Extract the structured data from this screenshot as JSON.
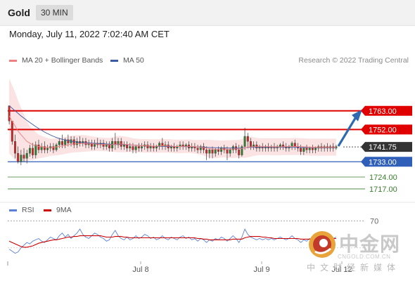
{
  "header": {
    "symbol": "Gold",
    "timeframe": "30 MIN",
    "datetime": "Monday, July 11, 2022 7:02:40 AM CET",
    "research": "Research © 2022 Trading Central"
  },
  "legend": {
    "ma20": "MA 20 + Bollinger Bands",
    "ma50": "MA 50",
    "ma20_color": "#f08080",
    "ma50_color": "#3b5ba5",
    "rsi": "RSI",
    "rsi9": "9MA",
    "rsi_color": "#5b7fd6",
    "rsi9_color": "#cc0000"
  },
  "colors": {
    "resistance": "#e00000",
    "support": "#2f5fb8",
    "target": "#3a7d2c",
    "current": "#333333",
    "arrow": "#2f6ab0",
    "band": "#fbe3e3"
  },
  "chart_data": [
    {
      "type": "candlestick",
      "ylim": [
        1712,
        1772
      ],
      "x_labels": [
        "Jul 8",
        "Jul 9",
        "Jul 12"
      ],
      "levels": [
        {
          "value": 1763.0,
          "label": "1763.00",
          "kind": "resistance"
        },
        {
          "value": 1752.0,
          "label": "1752.00",
          "kind": "resistance"
        },
        {
          "value": 1741.75,
          "label": "1741.75",
          "kind": "current"
        },
        {
          "value": 1733.0,
          "label": "1733.00",
          "kind": "support"
        },
        {
          "value": 1724.0,
          "label": "1724.00",
          "kind": "target"
        },
        {
          "value": 1717.0,
          "label": "1717.00",
          "kind": "target"
        }
      ],
      "forecast_arrow": {
        "from": 1741.75,
        "to": 1763.0
      },
      "candles": [
        [
          1766,
          1765,
          1757,
          1755
        ],
        [
          1757,
          1755,
          1745,
          1743
        ],
        [
          1745,
          1749,
          1738,
          1735
        ],
        [
          1738,
          1742,
          1733,
          1732
        ],
        [
          1733,
          1740,
          1737,
          1731
        ],
        [
          1737,
          1741,
          1735,
          1733
        ],
        [
          1735,
          1740,
          1738,
          1732
        ],
        [
          1738,
          1743,
          1741,
          1736
        ],
        [
          1741,
          1744,
          1737,
          1735
        ],
        [
          1737,
          1745,
          1743,
          1735
        ],
        [
          1743,
          1746,
          1740,
          1738
        ],
        [
          1740,
          1744,
          1742,
          1738
        ],
        [
          1742,
          1745,
          1740,
          1738
        ],
        [
          1740,
          1743,
          1741,
          1738
        ],
        [
          1741,
          1744,
          1742,
          1739
        ],
        [
          1742,
          1744,
          1740,
          1738
        ],
        [
          1740,
          1744,
          1743,
          1739
        ],
        [
          1743,
          1747,
          1745,
          1741
        ],
        [
          1745,
          1749,
          1743,
          1741
        ],
        [
          1743,
          1747,
          1746,
          1741
        ],
        [
          1746,
          1749,
          1744,
          1742
        ],
        [
          1744,
          1748,
          1746,
          1742
        ],
        [
          1746,
          1748,
          1743,
          1741
        ],
        [
          1743,
          1747,
          1745,
          1741
        ],
        [
          1745,
          1748,
          1744,
          1742
        ],
        [
          1744,
          1747,
          1745,
          1742
        ],
        [
          1745,
          1747,
          1743,
          1741
        ],
        [
          1743,
          1746,
          1744,
          1741
        ],
        [
          1744,
          1746,
          1742,
          1740
        ],
        [
          1742,
          1746,
          1744,
          1740
        ],
        [
          1744,
          1747,
          1743,
          1741
        ],
        [
          1743,
          1746,
          1744,
          1741
        ],
        [
          1744,
          1746,
          1742,
          1740
        ],
        [
          1742,
          1745,
          1743,
          1740
        ],
        [
          1743,
          1745,
          1741,
          1739
        ],
        [
          1741,
          1747,
          1745,
          1739
        ],
        [
          1745,
          1750,
          1743,
          1740
        ],
        [
          1743,
          1747,
          1745,
          1741
        ],
        [
          1745,
          1747,
          1742,
          1740
        ],
        [
          1742,
          1745,
          1743,
          1740
        ],
        [
          1743,
          1745,
          1741,
          1739
        ],
        [
          1741,
          1744,
          1742,
          1739
        ],
        [
          1742,
          1744,
          1740,
          1738
        ],
        [
          1740,
          1743,
          1742,
          1738
        ],
        [
          1742,
          1744,
          1741,
          1739
        ],
        [
          1741,
          1744,
          1742,
          1739
        ],
        [
          1742,
          1745,
          1743,
          1740
        ],
        [
          1743,
          1745,
          1741,
          1739
        ],
        [
          1741,
          1744,
          1742,
          1739
        ],
        [
          1742,
          1744,
          1741,
          1739
        ],
        [
          1741,
          1743,
          1742,
          1739
        ],
        [
          1742,
          1745,
          1744,
          1740
        ],
        [
          1744,
          1747,
          1742,
          1740
        ],
        [
          1742,
          1745,
          1743,
          1740
        ],
        [
          1743,
          1745,
          1741,
          1739
        ],
        [
          1741,
          1743,
          1742,
          1739
        ],
        [
          1742,
          1744,
          1741,
          1739
        ],
        [
          1741,
          1743,
          1742,
          1739
        ],
        [
          1742,
          1745,
          1743,
          1740
        ],
        [
          1743,
          1745,
          1742,
          1740
        ],
        [
          1742,
          1744,
          1743,
          1740
        ],
        [
          1743,
          1745,
          1741,
          1739
        ],
        [
          1741,
          1744,
          1742,
          1739
        ],
        [
          1742,
          1744,
          1741,
          1739
        ],
        [
          1741,
          1743,
          1740,
          1738
        ],
        [
          1740,
          1743,
          1742,
          1738
        ],
        [
          1742,
          1744,
          1740,
          1738
        ],
        [
          1740,
          1742,
          1738,
          1734
        ],
        [
          1738,
          1741,
          1740,
          1735
        ],
        [
          1740,
          1742,
          1738,
          1735
        ],
        [
          1738,
          1741,
          1740,
          1736
        ],
        [
          1740,
          1742,
          1739,
          1737
        ],
        [
          1739,
          1742,
          1741,
          1737
        ],
        [
          1741,
          1743,
          1740,
          1738
        ],
        [
          1740,
          1742,
          1738,
          1734
        ],
        [
          1738,
          1741,
          1740,
          1736
        ],
        [
          1740,
          1743,
          1742,
          1738
        ],
        [
          1742,
          1744,
          1740,
          1738
        ],
        [
          1740,
          1743,
          1737,
          1735
        ],
        [
          1737,
          1743,
          1742,
          1736
        ],
        [
          1742,
          1753,
          1748,
          1740
        ],
        [
          1748,
          1750,
          1745,
          1741
        ],
        [
          1745,
          1747,
          1742,
          1740
        ],
        [
          1742,
          1745,
          1743,
          1740
        ],
        [
          1743,
          1745,
          1741,
          1739
        ],
        [
          1741,
          1743,
          1742,
          1739
        ],
        [
          1742,
          1744,
          1741,
          1739
        ],
        [
          1741,
          1743,
          1742,
          1739
        ],
        [
          1742,
          1744,
          1741,
          1739
        ],
        [
          1741,
          1743,
          1742,
          1739
        ],
        [
          1742,
          1744,
          1741,
          1739
        ],
        [
          1741,
          1743,
          1742,
          1739
        ],
        [
          1742,
          1744,
          1743,
          1740
        ],
        [
          1743,
          1745,
          1742,
          1740
        ],
        [
          1742,
          1744,
          1741,
          1739
        ],
        [
          1741,
          1743,
          1742,
          1739
        ],
        [
          1742,
          1745,
          1744,
          1740
        ],
        [
          1744,
          1746,
          1742,
          1740
        ],
        [
          1742,
          1744,
          1741,
          1739
        ],
        [
          1741,
          1743,
          1739,
          1737
        ],
        [
          1739,
          1742,
          1741,
          1737
        ],
        [
          1741,
          1743,
          1740,
          1738
        ],
        [
          1740,
          1742,
          1741,
          1738
        ],
        [
          1741,
          1743,
          1740,
          1738
        ],
        [
          1740,
          1742,
          1741,
          1738
        ],
        [
          1741,
          1743,
          1742,
          1739
        ],
        [
          1742,
          1744,
          1741,
          1739
        ],
        [
          1741,
          1743,
          1742,
          1739
        ],
        [
          1742,
          1744,
          1741,
          1739
        ],
        [
          1741,
          1743,
          1742,
          1739
        ],
        [
          1742,
          1744,
          1741,
          1739
        ],
        [
          1741,
          1743,
          1742,
          1740
        ]
      ],
      "ma20": [
        1760,
        1757,
        1754,
        1751,
        1749,
        1747,
        1745,
        1744,
        1743,
        1742.5,
        1742,
        1741.8,
        1741.6,
        1741.5,
        1741.5,
        1741.6,
        1741.8,
        1742,
        1742.3,
        1742.6,
        1743,
        1743.3,
        1743.5,
        1743.6,
        1743.7,
        1743.8,
        1743.8,
        1743.7,
        1743.6,
        1743.5,
        1743.4,
        1743.3,
        1743.2,
        1743.1,
        1743,
        1743.1,
        1743.3,
        1743.4,
        1743.4,
        1743.3,
        1743.2,
        1743,
        1742.8,
        1742.6,
        1742.5,
        1742.4,
        1742.4,
        1742.4,
        1742.3,
        1742.2,
        1742.2,
        1742.3,
        1742.4,
        1742.4,
        1742.3,
        1742.2,
        1742.1,
        1742,
        1742,
        1742.1,
        1742.1,
        1742.1,
        1742,
        1741.9,
        1741.7,
        1741.5,
        1741.3,
        1741,
        1740.7,
        1740.5,
        1740.4,
        1740.4,
        1740.5,
        1740.6,
        1740.5,
        1740.4,
        1740.5,
        1740.6,
        1740.6,
        1740.8,
        1741.3,
        1741.6,
        1741.8,
        1741.9,
        1741.9,
        1741.9,
        1741.9,
        1741.9,
        1741.9,
        1741.8,
        1741.8,
        1741.8,
        1741.8,
        1741.9,
        1741.9,
        1741.9,
        1742,
        1742,
        1742,
        1741.9,
        1741.8,
        1741.7,
        1741.6,
        1741.6,
        1741.6,
        1741.6,
        1741.6,
        1741.6,
        1741.6,
        1741.6,
        1741.6,
        1741.6
      ],
      "ma50": [
        1766,
        1764.5,
        1763,
        1761.5,
        1760,
        1758.7,
        1757.4,
        1756.1,
        1754.9,
        1753.7,
        1752.6,
        1751.5,
        1750.5,
        1749.6,
        1748.8,
        1748,
        1747.3,
        1746.7,
        1746.2,
        1745.8,
        1745.4,
        1745.1,
        1744.8,
        1744.6,
        1744.4,
        1744.3,
        1744.2,
        1744.1,
        1744,
        1743.9,
        1743.8,
        1743.7,
        1743.6,
        1743.5,
        1743.4,
        1743.3,
        1743.3,
        1743.2,
        1743.2,
        1743.1,
        1743,
        1742.9,
        1742.8,
        1742.7,
        1742.6,
        1742.5,
        1742.4,
        1742.3,
        1742.2,
        1742.2,
        1742.1,
        1742.1,
        1742.1,
        1742.1,
        1742,
        1742,
        1742,
        1741.9,
        1741.9,
        1741.9,
        1741.9,
        1741.9,
        1741.8,
        1741.8,
        1741.7,
        1741.7,
        1741.6,
        1741.5,
        1741.4,
        1741.3,
        1741.3,
        1741.2,
        1741.2,
        1741.2,
        1741.1,
        1741.1,
        1741.1,
        1741.1,
        1741,
        1741.1,
        1741.3,
        1741.4,
        1741.5,
        1741.5,
        1741.5,
        1741.5,
        1741.5,
        1741.5,
        1741.5,
        1741.5,
        1741.5,
        1741.5,
        1741.5,
        1741.5,
        1741.5,
        1741.5,
        1741.5,
        1741.5,
        1741.5,
        1741.4,
        1741.4,
        1741.4,
        1741.4,
        1741.4,
        1741.4,
        1741.4,
        1741.4,
        1741.4,
        1741.4,
        1741.4,
        1741.4,
        1741.4
      ],
      "bb_width": [
        22,
        21,
        20,
        18,
        16,
        14,
        12,
        10,
        9,
        8,
        7,
        6.5,
        6,
        5.5,
        5,
        5,
        5,
        5,
        5,
        5,
        5,
        5,
        5,
        5,
        5,
        5,
        4.8,
        4.6,
        4.4,
        4.2,
        4,
        4,
        4,
        4,
        4,
        4.2,
        4.5,
        4.8,
        4.8,
        4.7,
        4.5,
        4.3,
        4.1,
        4,
        4,
        4,
        4,
        4,
        4,
        4,
        4,
        4,
        4,
        4,
        4,
        4,
        4,
        4,
        4,
        4,
        4,
        4,
        4,
        4,
        4.2,
        4.4,
        4.6,
        5,
        5.2,
        5.3,
        5.3,
        5.2,
        5,
        5,
        5.2,
        5.3,
        5.3,
        5.2,
        5.3,
        5.5,
        6,
        6,
        5.8,
        5.5,
        5.2,
        5,
        5,
        5,
        5,
        5,
        5,
        5,
        5,
        5,
        5,
        5,
        5,
        5,
        5,
        5,
        5,
        5,
        5,
        5,
        5,
        5,
        5,
        5,
        5,
        5,
        5,
        5
      ]
    },
    {
      "type": "line",
      "name": "RSI",
      "ylim": [
        10,
        80
      ],
      "levels": [
        {
          "value": 70,
          "label": "70"
        }
      ],
      "series": [
        {
          "name": "RSI",
          "values": [
            28,
            25,
            22,
            24,
            30,
            34,
            38,
            36,
            40,
            42,
            44,
            40,
            38,
            42,
            46,
            44,
            42,
            48,
            52,
            46,
            50,
            44,
            48,
            52,
            58,
            50,
            46,
            44,
            48,
            52,
            50,
            46,
            44,
            40,
            42,
            50,
            56,
            48,
            44,
            42,
            46,
            42,
            44,
            48,
            44,
            46,
            50,
            48,
            44,
            46,
            42,
            44,
            48,
            44,
            42,
            46,
            44,
            42,
            46,
            48,
            44,
            46,
            42,
            44,
            40,
            44,
            42,
            38,
            42,
            40,
            44,
            42,
            46,
            44,
            40,
            44,
            48,
            44,
            38,
            46,
            58,
            50,
            46,
            44,
            42,
            44,
            42,
            44,
            42,
            44,
            42,
            44,
            46,
            44,
            42,
            44,
            48,
            44,
            42,
            38,
            42,
            40,
            44,
            42,
            44,
            46,
            44,
            46,
            44,
            46,
            44,
            46
          ]
        },
        {
          "name": "9MA",
          "values": [
            40,
            38,
            36,
            34,
            32,
            31,
            31,
            32,
            33,
            35,
            37,
            38,
            39,
            40,
            41,
            42,
            42,
            43,
            44,
            45,
            46,
            46,
            47,
            47,
            48,
            48,
            48,
            48,
            48,
            48,
            48,
            48,
            47,
            46,
            46,
            46,
            47,
            47,
            47,
            46,
            46,
            45,
            45,
            45,
            45,
            45,
            45,
            45,
            45,
            45,
            45,
            45,
            45,
            45,
            45,
            45,
            45,
            45,
            45,
            45,
            45,
            45,
            45,
            45,
            44,
            44,
            43,
            43,
            42,
            42,
            42,
            42,
            42,
            42,
            42,
            42,
            43,
            43,
            43,
            43,
            45,
            46,
            47,
            47,
            47,
            47,
            46,
            46,
            45,
            45,
            44,
            44,
            44,
            44,
            44,
            44,
            44,
            44,
            44,
            43,
            43,
            43,
            43,
            43,
            43,
            43,
            43,
            44,
            44,
            44,
            44,
            44
          ]
        }
      ]
    }
  ],
  "watermark": {
    "cn": "中金网",
    "en": "CNGOLD.COM.CN",
    "sub": "中文财经新媒体"
  }
}
